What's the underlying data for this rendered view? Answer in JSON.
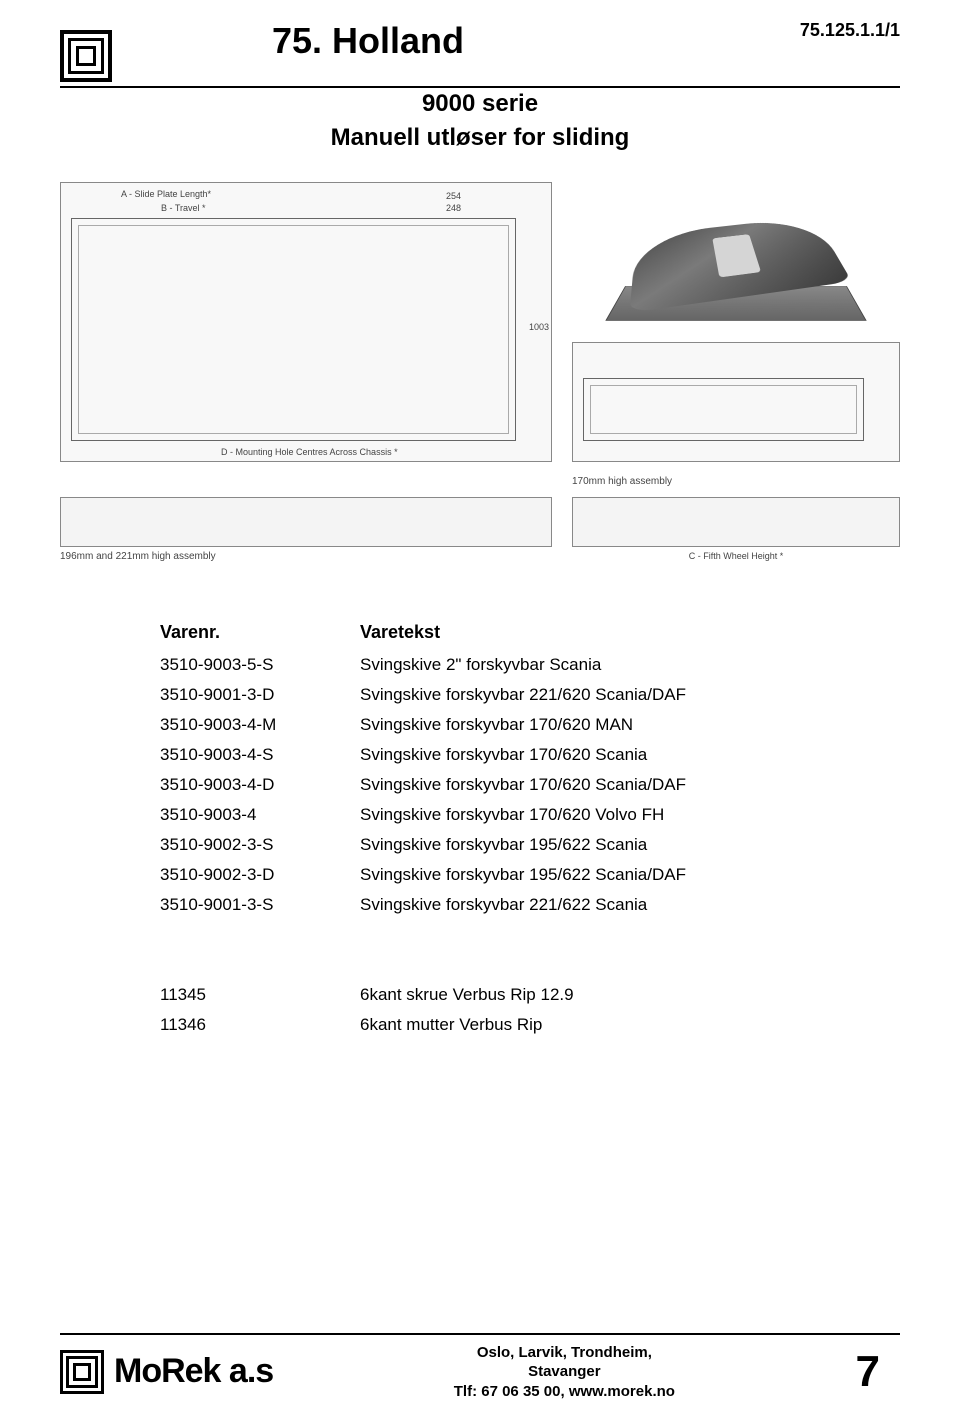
{
  "header": {
    "main_title": "75. Holland",
    "page_code": "75.125.1.1/1",
    "subtitle1": "9000 serie",
    "subtitle2": "Manuell utløser for sliding"
  },
  "diagram": {
    "label_a": "A - Slide Plate Length*",
    "label_b": "B - Travel *",
    "label_254": "254",
    "label_248": "248",
    "label_1003": "1003",
    "label_d": "D - Mounting Hole Centres Across Chassis *",
    "label_170": "170mm high assembly",
    "label_196": "196mm and 221mm high assembly",
    "label_c": "C - Fifth Wheel Height *"
  },
  "table": {
    "header_col1": "Varenr.",
    "header_col2": "Varetekst",
    "rows": [
      {
        "num": "3510-9003-5-S",
        "text": "Svingskive 2\" forskyvbar Scania"
      },
      {
        "num": "3510-9001-3-D",
        "text": "Svingskive forskyvbar 221/620 Scania/DAF"
      },
      {
        "num": "3510-9003-4-M",
        "text": "Svingskive forskyvbar 170/620 MAN"
      },
      {
        "num": "3510-9003-4-S",
        "text": "Svingskive forskyvbar 170/620 Scania"
      },
      {
        "num": "3510-9003-4-D",
        "text": "Svingskive forskyvbar 170/620 Scania/DAF"
      },
      {
        "num": "3510-9003-4",
        "text": "Svingskive forskyvbar 170/620 Volvo FH"
      },
      {
        "num": "3510-9002-3-S",
        "text": "Svingskive forskyvbar 195/622 Scania"
      },
      {
        "num": "3510-9002-3-D",
        "text": "Svingskive forskyvbar 195/622 Scania/DAF"
      },
      {
        "num": "3510-9001-3-S",
        "text": "Svingskive forskyvbar 221/622 Scania"
      }
    ]
  },
  "extras": [
    {
      "num": "11345",
      "text": "6kant skrue Verbus Rip 12.9"
    },
    {
      "num": "11346",
      "text": "6kant mutter Verbus Rip"
    }
  ],
  "footer": {
    "brand": "MoRek a.s",
    "line1": "Oslo, Larvik, Trondheim,",
    "line2": "Stavanger",
    "line3": "Tlf: 67 06 35 00, www.morek.no",
    "page_num": "7"
  },
  "colors": {
    "text": "#000000",
    "diagram_border": "#888888",
    "diagram_bg": "#f8f8f8",
    "label_gray": "#444444"
  },
  "fonts": {
    "title_size": 36,
    "subtitle_size": 24,
    "body_size": 17,
    "header_weight": "bold"
  }
}
